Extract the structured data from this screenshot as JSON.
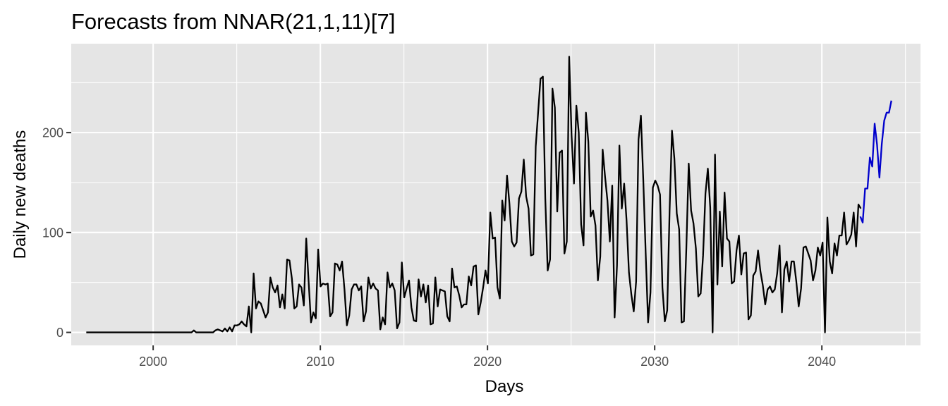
{
  "chart_data": {
    "type": "line",
    "title": "Forecasts from NNAR(21,1,11)[7]",
    "xlabel": "Days",
    "ylabel": "Daily new deaths",
    "xlim": [
      1995.1,
      2045.9
    ],
    "ylim": [
      -13,
      289
    ],
    "x_ticks": [
      2000,
      2010,
      2020,
      2030,
      2040
    ],
    "y_ticks": [
      0,
      100,
      200
    ],
    "grid": true,
    "background": "#e5e5e5",
    "series": [
      {
        "color": "#000000",
        "x_start": 1996,
        "x_step": 0.143,
        "values": [
          0,
          0,
          0,
          0,
          0,
          0,
          0,
          0,
          0,
          0,
          0,
          0,
          0,
          0,
          0,
          0,
          0,
          0,
          0,
          0,
          0,
          0,
          0,
          0,
          0,
          0,
          0,
          0,
          0,
          0,
          0,
          0,
          0,
          0,
          0,
          0,
          0,
          0,
          0,
          0,
          0,
          0,
          0,
          0,
          0,
          2,
          0,
          0,
          0,
          0,
          0,
          0,
          0,
          0,
          2,
          3,
          2,
          1,
          4,
          1,
          5,
          1,
          7,
          7,
          8,
          11,
          8,
          6,
          26,
          0,
          59,
          24,
          31,
          29,
          22,
          15,
          20,
          55,
          45,
          40,
          47,
          25,
          38,
          24,
          73,
          72,
          54,
          24,
          26,
          48,
          45,
          27,
          94,
          51,
          10,
          20,
          14,
          83,
          46,
          49,
          48,
          49,
          16,
          20,
          69,
          68,
          62,
          71,
          43,
          7,
          17,
          43,
          48,
          48,
          42,
          46,
          11,
          21,
          55,
          44,
          49,
          44,
          42,
          3,
          15,
          8,
          60,
          45,
          49,
          42,
          4,
          10,
          70,
          35,
          44,
          52,
          25,
          12,
          11,
          53,
          36,
          48,
          30,
          47,
          8,
          9,
          55,
          26,
          43,
          42,
          41,
          16,
          11,
          64,
          45,
          46,
          37,
          25,
          28,
          28,
          56,
          47,
          66,
          67,
          18,
          30,
          45,
          62,
          49,
          120,
          94,
          95,
          45,
          34,
          132,
          112,
          157,
          129,
          91,
          86,
          90,
          134,
          141,
          173,
          136,
          124,
          77,
          78,
          186,
          220,
          254,
          256,
          134,
          62,
          73,
          244,
          225,
          121,
          180,
          182,
          79,
          91,
          276,
          197,
          149,
          227,
          200,
          108,
          87,
          220,
          191,
          116,
          122,
          107,
          52,
          76,
          183,
          156,
          132,
          91,
          147,
          15,
          67,
          187,
          124,
          149,
          112,
          60,
          38,
          21,
          51,
          193,
          217,
          152,
          79,
          10,
          40,
          145,
          152,
          147,
          138,
          45,
          11,
          22,
          122,
          202,
          174,
          119,
          103,
          10,
          11,
          84,
          169,
          122,
          109,
          84,
          36,
          39,
          77,
          139,
          164,
          125,
          0,
          178,
          48,
          121,
          66,
          140,
          94,
          91,
          49,
          51,
          82,
          97,
          58,
          79,
          80,
          13,
          17,
          57,
          61,
          82,
          61,
          47,
          28,
          43,
          46,
          40,
          43,
          59,
          87,
          20,
          63,
          71,
          51,
          71,
          71,
          51,
          26,
          44,
          85,
          86,
          79,
          72,
          52,
          62,
          85,
          77,
          90,
          0,
          115,
          71,
          59,
          89,
          77,
          97,
          97,
          120,
          88,
          92,
          98,
          120,
          86,
          128,
          124
        ]
      },
      {
        "color": "#0000cc",
        "x_start": 2042.3,
        "x_step": 0.143,
        "values": [
          116,
          110,
          144,
          144,
          175,
          166,
          209,
          188,
          155,
          189,
          212,
          220,
          220,
          232
        ]
      }
    ]
  }
}
